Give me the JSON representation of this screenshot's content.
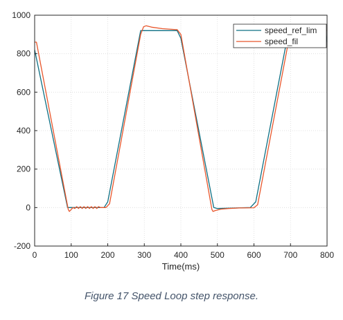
{
  "chart_data": {
    "type": "line",
    "xlabel": "Time(ms)",
    "ylabel": "",
    "xlim": [
      0,
      800
    ],
    "ylim": [
      -200,
      1000
    ],
    "xticks": [
      0,
      100,
      200,
      300,
      400,
      500,
      600,
      700,
      800
    ],
    "yticks": [
      -200,
      0,
      200,
      400,
      600,
      800,
      1000
    ],
    "grid": true,
    "legend_position": "top-right",
    "series": [
      {
        "name": "speed_ref_lim",
        "color": "#0d6f83",
        "points": [
          [
            0,
            820
          ],
          [
            90,
            0
          ],
          [
            150,
            0
          ],
          [
            190,
            0
          ],
          [
            200,
            30
          ],
          [
            290,
            920
          ],
          [
            390,
            920
          ],
          [
            400,
            880
          ],
          [
            490,
            0
          ],
          [
            500,
            -5
          ],
          [
            590,
            0
          ],
          [
            605,
            30
          ],
          [
            695,
            920
          ],
          [
            795,
            920
          ],
          [
            800,
            860
          ]
        ]
      },
      {
        "name": "speed_fil",
        "color": "#e8552a",
        "points": [
          [
            0,
            860
          ],
          [
            5,
            860
          ],
          [
            92,
            -10
          ],
          [
            95,
            -20
          ],
          [
            100,
            -10
          ],
          [
            105,
            0
          ],
          [
            110,
            -5
          ],
          [
            115,
            5
          ],
          [
            120,
            -5
          ],
          [
            125,
            5
          ],
          [
            130,
            -5
          ],
          [
            135,
            5
          ],
          [
            140,
            -5
          ],
          [
            145,
            5
          ],
          [
            150,
            -5
          ],
          [
            155,
            5
          ],
          [
            160,
            -5
          ],
          [
            165,
            5
          ],
          [
            170,
            -5
          ],
          [
            175,
            5
          ],
          [
            180,
            0
          ],
          [
            195,
            0
          ],
          [
            205,
            20
          ],
          [
            290,
            900
          ],
          [
            298,
            940
          ],
          [
            305,
            945
          ],
          [
            320,
            938
          ],
          [
            350,
            930
          ],
          [
            390,
            925
          ],
          [
            400,
            900
          ],
          [
            485,
            -10
          ],
          [
            488,
            -20
          ],
          [
            495,
            -15
          ],
          [
            510,
            -8
          ],
          [
            530,
            -5
          ],
          [
            560,
            -2
          ],
          [
            600,
            -1
          ],
          [
            610,
            15
          ],
          [
            700,
            920
          ],
          [
            790,
            925
          ],
          [
            800,
            920
          ]
        ]
      }
    ]
  },
  "caption": "Figure 17 Speed Loop step response."
}
